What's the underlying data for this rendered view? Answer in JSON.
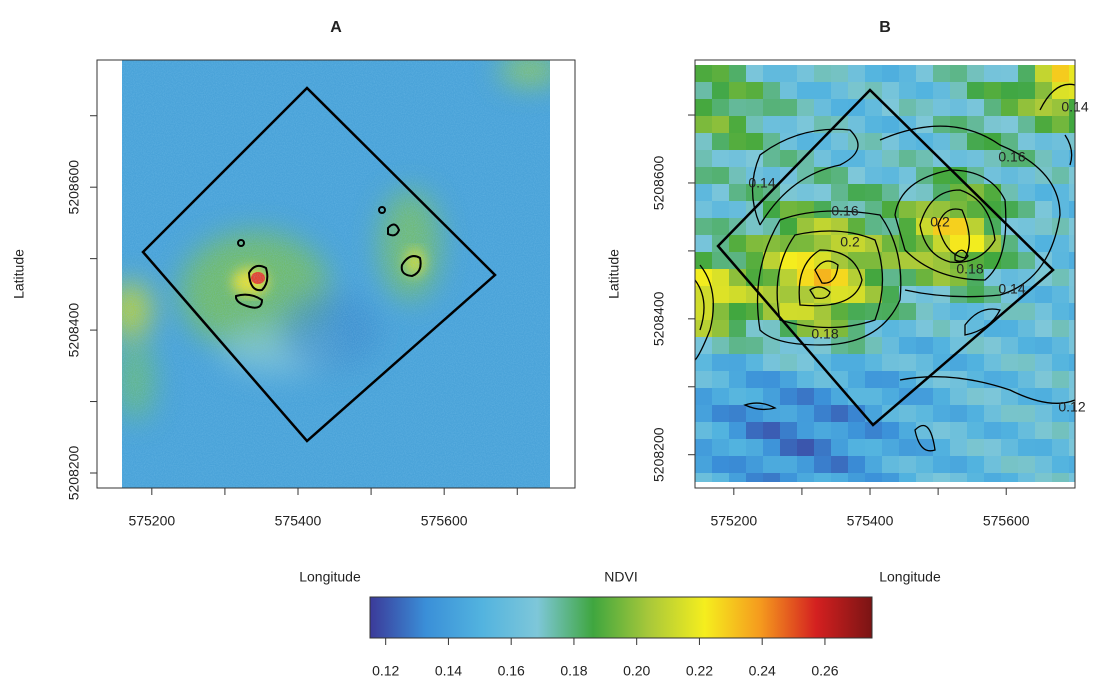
{
  "chart_data": [
    {
      "type": "raster",
      "title": "A",
      "xlabel": "Longitude",
      "ylabel": "Latitude",
      "xlim": [
        575125,
        575779
      ],
      "ylim": [
        5208179,
        5208778
      ],
      "xticks": [
        575200,
        575400,
        575600
      ],
      "yticks": [
        5208200,
        5208400,
        5208600
      ],
      "xminorticks": [
        575300,
        575500,
        575700
      ],
      "yminorticks": [
        5208300,
        5208500,
        5208700
      ]
    },
    {
      "type": "raster",
      "title": "B",
      "xlabel": "Longitude",
      "ylabel": "Latitude",
      "xlim": [
        575143,
        575701
      ],
      "ylim": [
        5208151,
        5208781
      ],
      "xticks": [
        575200,
        575400,
        575600
      ],
      "yticks": [
        5208200,
        5208400,
        5208600
      ],
      "xminorticks": [
        575300,
        575500
      ],
      "yminorticks": [
        5208300,
        5208500,
        5208700
      ],
      "contour_labels": [
        "0.14",
        "0.14",
        "0.16",
        "0.16",
        "0.2",
        "0.2",
        "0.18",
        "0.14",
        "0.18",
        "0.12"
      ]
    },
    {
      "type": "colorbar",
      "title": "NDVI",
      "xlim": [
        0.115,
        0.275
      ],
      "xticks": [
        0.12,
        0.14,
        0.16,
        0.18,
        {
          "value": 0.2,
          "label": "0.20"
        },
        0.22,
        0.24,
        0.26
      ],
      "colors": [
        "#3b3a99",
        "#3a8fd8",
        "#52b3df",
        "#7ec7d9",
        "#3fa63f",
        "#a8c83a",
        "#f5ee1e",
        "#f59a1e",
        "#d42020",
        "#7a1414"
      ]
    }
  ]
}
